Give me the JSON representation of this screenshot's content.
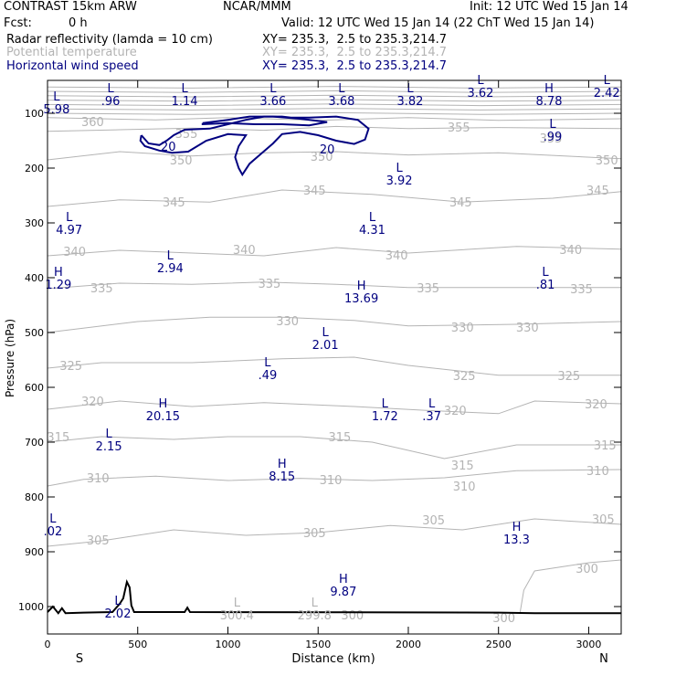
{
  "header": {
    "model": "CONTRAST 15km ARW",
    "center": "NCAR/MMM",
    "init": "Init: 12 UTC Wed 15 Jan 14",
    "fcst_label": "Fcst:",
    "fcst_value": "0 h",
    "valid": "Valid: 12 UTC Wed 15 Jan 14 (22 ChT Wed 15 Jan 14)",
    "fields": [
      {
        "name": "Radar reflectivity (lamda = 10 cm)",
        "xy": "XY= 235.3,  2.5 to 235.3,214.7",
        "color": "#000000"
      },
      {
        "name": "Potential temperature",
        "xy": "XY= 235.3,  2.5 to 235.3,214.7",
        "color": "#b4b4b4"
      },
      {
        "name": "Horizontal wind speed",
        "xy": "XY= 235.3,  2.5 to 235.3,214.7",
        "color": "#000080"
      }
    ]
  },
  "chart_data": {
    "type": "contour",
    "xlabel": "Distance (km)",
    "ylabel": "Pressure (hPa)",
    "xlim": [
      0,
      3180
    ],
    "ylim": [
      1050,
      40
    ],
    "x_ticks": [
      0,
      500,
      1000,
      1500,
      2000,
      2500,
      3000
    ],
    "y_ticks": [
      100,
      200,
      300,
      400,
      500,
      600,
      700,
      800,
      900,
      1000
    ],
    "endpoints": {
      "left": "S",
      "right": "N"
    },
    "colors": {
      "theta": "#b4b4b4",
      "wind": "#000080",
      "terrain": "#000000"
    },
    "theta_lines": [
      {
        "value": 360,
        "points": [
          [
            0,
            108
          ],
          [
            300,
            110
          ],
          [
            600,
            112
          ],
          [
            1000,
            108
          ],
          [
            1500,
            113
          ],
          [
            2000,
            108
          ],
          [
            2500,
            113
          ],
          [
            3180,
            110
          ]
        ],
        "labels": [
          [
            250,
            115
          ]
        ]
      },
      {
        "value": 355,
        "points": [
          [
            0,
            133
          ],
          [
            400,
            130
          ],
          [
            800,
            127
          ],
          [
            1200,
            131
          ],
          [
            1600,
            124
          ],
          [
            2000,
            128
          ],
          [
            2500,
            126
          ],
          [
            3180,
            128
          ]
        ],
        "labels": [
          [
            770,
            137
          ],
          [
            2280,
            125
          ],
          [
            2790,
            145
          ]
        ]
      },
      {
        "value": 350,
        "points": [
          [
            0,
            185
          ],
          [
            400,
            170
          ],
          [
            800,
            178
          ],
          [
            1200,
            172
          ],
          [
            1600,
            170
          ],
          [
            2000,
            176
          ],
          [
            2500,
            172
          ],
          [
            3180,
            183
          ]
        ],
        "labels": [
          [
            740,
            185
          ],
          [
            1520,
            178
          ],
          [
            3100,
            185
          ]
        ]
      },
      {
        "value": 345,
        "points": [
          [
            0,
            270
          ],
          [
            400,
            258
          ],
          [
            900,
            262
          ],
          [
            1300,
            240
          ],
          [
            1800,
            248
          ],
          [
            2300,
            262
          ],
          [
            2800,
            255
          ],
          [
            3180,
            243
          ]
        ],
        "labels": [
          [
            700,
            262
          ],
          [
            1480,
            240
          ],
          [
            2290,
            262
          ],
          [
            3050,
            240
          ]
        ]
      },
      {
        "value": 340,
        "points": [
          [
            0,
            360
          ],
          [
            400,
            350
          ],
          [
            800,
            355
          ],
          [
            1200,
            360
          ],
          [
            1600,
            345
          ],
          [
            2000,
            355
          ],
          [
            2600,
            343
          ],
          [
            3180,
            348
          ]
        ],
        "labels": [
          [
            150,
            352
          ],
          [
            1090,
            348
          ],
          [
            1935,
            358
          ],
          [
            2900,
            348
          ]
        ]
      },
      {
        "value": 335,
        "points": [
          [
            0,
            420
          ],
          [
            400,
            410
          ],
          [
            800,
            412
          ],
          [
            1200,
            408
          ],
          [
            1600,
            412
          ],
          [
            2000,
            418
          ],
          [
            2600,
            418
          ],
          [
            3180,
            418
          ]
        ],
        "labels": [
          [
            300,
            418
          ],
          [
            1230,
            410
          ],
          [
            2110,
            418
          ],
          [
            2960,
            420
          ]
        ]
      },
      {
        "value": 330,
        "points": [
          [
            0,
            500
          ],
          [
            500,
            480
          ],
          [
            900,
            472
          ],
          [
            1300,
            472
          ],
          [
            1700,
            478
          ],
          [
            2000,
            488
          ],
          [
            2600,
            485
          ],
          [
            3180,
            480
          ]
        ],
        "labels": [
          [
            1330,
            478
          ],
          [
            2300,
            490
          ],
          [
            2660,
            490
          ]
        ]
      },
      {
        "value": 325,
        "points": [
          [
            0,
            565
          ],
          [
            300,
            555
          ],
          [
            800,
            555
          ],
          [
            1300,
            548
          ],
          [
            1700,
            545
          ],
          [
            2000,
            560
          ],
          [
            2500,
            578
          ],
          [
            3180,
            578
          ]
        ],
        "labels": [
          [
            130,
            560
          ],
          [
            2310,
            578
          ],
          [
            2890,
            578
          ]
        ]
      },
      {
        "value": 320,
        "points": [
          [
            0,
            640
          ],
          [
            400,
            625
          ],
          [
            800,
            635
          ],
          [
            1200,
            628
          ],
          [
            1700,
            635
          ],
          [
            2100,
            642
          ],
          [
            2500,
            648
          ],
          [
            2700,
            625
          ],
          [
            3180,
            630
          ]
        ],
        "labels": [
          [
            250,
            625
          ],
          [
            2260,
            642
          ],
          [
            3040,
            630
          ]
        ]
      },
      {
        "value": 315,
        "points": [
          [
            0,
            700
          ],
          [
            300,
            690
          ],
          [
            700,
            695
          ],
          [
            1000,
            690
          ],
          [
            1400,
            690
          ],
          [
            1800,
            700
          ],
          [
            2200,
            730
          ],
          [
            2600,
            705
          ],
          [
            3180,
            705
          ]
        ],
        "labels": [
          [
            60,
            690
          ],
          [
            1620,
            690
          ],
          [
            2300,
            742
          ],
          [
            3090,
            705
          ]
        ]
      },
      {
        "value": 310,
        "points": [
          [
            0,
            780
          ],
          [
            200,
            768
          ],
          [
            600,
            762
          ],
          [
            1000,
            770
          ],
          [
            1400,
            766
          ],
          [
            1800,
            770
          ],
          [
            2200,
            765
          ],
          [
            2600,
            752
          ],
          [
            3180,
            750
          ]
        ],
        "labels": [
          [
            280,
            765
          ],
          [
            1570,
            768
          ],
          [
            2310,
            780
          ],
          [
            3050,
            752
          ]
        ]
      },
      {
        "value": 305,
        "points": [
          [
            0,
            890
          ],
          [
            300,
            880
          ],
          [
            700,
            860
          ],
          [
            1100,
            870
          ],
          [
            1500,
            865
          ],
          [
            1900,
            852
          ],
          [
            2300,
            860
          ],
          [
            2700,
            840
          ],
          [
            3180,
            850
          ]
        ],
        "labels": [
          [
            280,
            878
          ],
          [
            1480,
            865
          ],
          [
            2140,
            842
          ],
          [
            3080,
            840
          ]
        ]
      },
      {
        "value": 300,
        "points": [
          [
            2620,
            1010
          ],
          [
            2640,
            970
          ],
          [
            2700,
            935
          ],
          [
            3000,
            920
          ],
          [
            3180,
            915
          ]
        ],
        "labels": [
          [
            2990,
            930
          ],
          [
            2530,
            1020
          ],
          [
            1690,
            1015
          ]
        ]
      }
    ],
    "wind_contours": [
      {
        "value": 20,
        "points": [
          [
            520,
            140
          ],
          [
            560,
            155
          ],
          [
            620,
            158
          ],
          [
            660,
            150
          ],
          [
            700,
            140
          ],
          [
            760,
            130
          ],
          [
            900,
            128
          ],
          [
            1000,
            120
          ],
          [
            1100,
            112
          ],
          [
            1200,
            106
          ],
          [
            1300,
            106
          ],
          [
            1350,
            108
          ],
          [
            1450,
            108
          ],
          [
            1600,
            106
          ],
          [
            1720,
            112
          ],
          [
            1780,
            128
          ],
          [
            1760,
            148
          ],
          [
            1700,
            156
          ],
          [
            1600,
            150
          ],
          [
            1500,
            140
          ],
          [
            1400,
            134
          ],
          [
            1300,
            138
          ],
          [
            1250,
            155
          ],
          [
            1180,
            175
          ],
          [
            1120,
            192
          ],
          [
            1080,
            212
          ],
          [
            1060,
            200
          ],
          [
            1040,
            180
          ],
          [
            1060,
            160
          ],
          [
            1100,
            140
          ],
          [
            1000,
            138
          ],
          [
            880,
            150
          ],
          [
            780,
            170
          ],
          [
            690,
            172
          ],
          [
            620,
            168
          ],
          [
            540,
            160
          ],
          [
            515,
            150
          ],
          [
            520,
            140
          ]
        ],
        "labels": [
          [
            670,
            160
          ],
          [
            1550,
            165
          ]
        ]
      },
      {
        "value": 20,
        "points": [
          [
            860,
            118
          ],
          [
            1000,
            112
          ],
          [
            1120,
            106
          ],
          [
            1250,
            106
          ],
          [
            1400,
            110
          ],
          [
            1500,
            114
          ],
          [
            1550,
            116
          ],
          [
            1450,
            122
          ],
          [
            1300,
            120
          ],
          [
            1150,
            120
          ],
          [
            1000,
            118
          ],
          [
            860,
            120
          ],
          [
            860,
            118
          ]
        ],
        "labels": []
      }
    ],
    "extrema": [
      {
        "type": "L",
        "value": ".96",
        "x": 350,
        "y": 65
      },
      {
        "type": "L",
        "value": "1.14",
        "x": 760,
        "y": 65
      },
      {
        "type": "L",
        "value": "3.66",
        "x": 1250,
        "y": 65
      },
      {
        "type": "L",
        "value": "3.68",
        "x": 1630,
        "y": 65
      },
      {
        "type": "L",
        "value": "3.82",
        "x": 2010,
        "y": 65
      },
      {
        "type": "L",
        "value": "3.62",
        "x": 2400,
        "y": 50
      },
      {
        "type": "H",
        "value": "8.78",
        "x": 2780,
        "y": 65
      },
      {
        "type": "L",
        "value": "2.42",
        "x": 3100,
        "y": 50
      },
      {
        "type": "L",
        "value": "5.98",
        "x": 50,
        "y": 80
      },
      {
        "type": "L",
        "value": ".99",
        "x": 2800,
        "y": 130
      },
      {
        "type": "L",
        "value": "3.92",
        "x": 1950,
        "y": 210
      },
      {
        "type": "L",
        "value": "4.97",
        "x": 120,
        "y": 300
      },
      {
        "type": "L",
        "value": "4.31",
        "x": 1800,
        "y": 300
      },
      {
        "type": "L",
        "value": "2.94",
        "x": 680,
        "y": 370
      },
      {
        "type": "H",
        "value": "1.29",
        "x": 60,
        "y": 400
      },
      {
        "type": "L",
        "value": ".81",
        "x": 2760,
        "y": 400
      },
      {
        "type": "H",
        "value": "13.69",
        "x": 1740,
        "y": 425
      },
      {
        "type": "L",
        "value": "2.01",
        "x": 1540,
        "y": 510
      },
      {
        "type": "L",
        "value": ".49",
        "x": 1220,
        "y": 565
      },
      {
        "type": "H",
        "value": "20.15",
        "x": 640,
        "y": 640
      },
      {
        "type": "L",
        "value": "1.72",
        "x": 1870,
        "y": 640
      },
      {
        "type": "L",
        "value": ".37",
        "x": 2130,
        "y": 640
      },
      {
        "type": "L",
        "value": "2.15",
        "x": 340,
        "y": 695
      },
      {
        "type": "H",
        "value": "8.15",
        "x": 1300,
        "y": 750
      },
      {
        "type": "L",
        "value": ".02",
        "x": 30,
        "y": 850
      },
      {
        "type": "H",
        "value": "13.3",
        "x": 2600,
        "y": 865
      },
      {
        "type": "H",
        "value": "9.87",
        "x": 1640,
        "y": 960
      },
      {
        "type": "L",
        "value": "2.02",
        "x": 390,
        "y": 1000
      }
    ],
    "theta_extrema": [
      {
        "type": "L",
        "value": "300.4",
        "x": 1050,
        "y": 1010
      },
      {
        "type": "L",
        "value": "299.8",
        "x": 1480,
        "y": 1010
      }
    ],
    "terrain": [
      [
        0,
        1010
      ],
      [
        30,
        1000
      ],
      [
        60,
        1012
      ],
      [
        80,
        1003
      ],
      [
        100,
        1012
      ],
      [
        200,
        1011
      ],
      [
        360,
        1010
      ],
      [
        400,
        995
      ],
      [
        420,
        985
      ],
      [
        440,
        955
      ],
      [
        455,
        965
      ],
      [
        465,
        998
      ],
      [
        480,
        1010
      ],
      [
        760,
        1010
      ],
      [
        775,
        1002
      ],
      [
        790,
        1010
      ],
      [
        2500,
        1011
      ],
      [
        2700,
        1012
      ],
      [
        3180,
        1012
      ]
    ]
  }
}
